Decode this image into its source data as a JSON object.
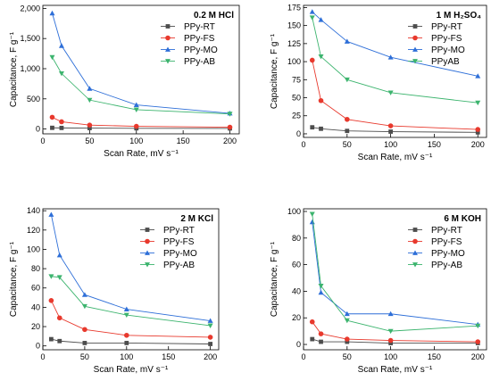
{
  "chart_data": [
    {
      "type": "line",
      "title": "0.2 M HCl",
      "xlabel": "Scan Rate, mV s⁻¹",
      "ylabel": "Capacitance, F g⁻¹",
      "x": [
        10,
        20,
        50,
        100,
        200
      ],
      "xlim": [
        0,
        210
      ],
      "xticks": [
        0,
        50,
        100,
        150,
        200
      ],
      "xtick_labels": [
        "0",
        "50",
        "100",
        "150",
        "200"
      ],
      "ylim": [
        -80,
        2050
      ],
      "yticks": [
        0,
        500,
        1000,
        1500,
        2000
      ],
      "ytick_labels": [
        "0",
        "500",
        "1,000",
        "1,500",
        "2,000"
      ],
      "legend_position": "top-right",
      "grid": false,
      "series": [
        {
          "name": "PPy-RT",
          "color": "#4d4d4d",
          "marker": "square",
          "values": [
            20,
            18,
            15,
            12,
            10
          ]
        },
        {
          "name": "PPy-FS",
          "color": "#e8392d",
          "marker": "circle",
          "values": [
            195,
            120,
            65,
            45,
            30
          ]
        },
        {
          "name": "PPy-MO",
          "color": "#2e6fd8",
          "marker": "triangle-up",
          "values": [
            1920,
            1380,
            670,
            400,
            260
          ]
        },
        {
          "name": "PPy-AB",
          "color": "#3cb46e",
          "marker": "triangle-down",
          "values": [
            1190,
            920,
            480,
            320,
            250
          ]
        }
      ]
    },
    {
      "type": "line",
      "title": "1 M H₂SO₄",
      "xlabel": "Scan Rate, mV s⁻¹",
      "ylabel": "Capacitance, F g⁻¹",
      "x": [
        10,
        20,
        50,
        100,
        200
      ],
      "xlim": [
        0,
        210
      ],
      "xticks": [
        0,
        50,
        100,
        150,
        200
      ],
      "xtick_labels": [
        "0",
        "50",
        "100",
        "150",
        "200"
      ],
      "ylim": [
        -5,
        178
      ],
      "yticks": [
        0,
        25,
        50,
        75,
        100,
        125,
        150,
        175
      ],
      "ytick_labels": [
        "0",
        "25",
        "50",
        "75",
        "100",
        "125",
        "150",
        "175"
      ],
      "legend_position": "top-right",
      "grid": false,
      "series": [
        {
          "name": "PPy-RT",
          "color": "#4d4d4d",
          "marker": "square",
          "values": [
            9,
            7,
            4,
            3,
            2
          ]
        },
        {
          "name": "PPy-FS",
          "color": "#e8392d",
          "marker": "circle",
          "values": [
            102,
            46,
            20,
            11,
            6
          ]
        },
        {
          "name": "PPy-MO",
          "color": "#2e6fd8",
          "marker": "triangle-up",
          "values": [
            169,
            158,
            128,
            106,
            80
          ]
        },
        {
          "name": "PPyAB",
          "color": "#3cb46e",
          "marker": "triangle-down",
          "values": [
            161,
            107,
            75,
            57,
            43
          ]
        }
      ]
    },
    {
      "type": "line",
      "title": "2 M KCl",
      "xlabel": "Scan Rate, mV s⁻¹",
      "ylabel": "Capacitance, F g⁻¹",
      "x": [
        10,
        20,
        50,
        100,
        200
      ],
      "xlim": [
        0,
        210
      ],
      "xticks": [
        0,
        50,
        100,
        150,
        200
      ],
      "xtick_labels": [
        "0",
        "50",
        "100",
        "150",
        "200"
      ],
      "ylim": [
        -4,
        142
      ],
      "yticks": [
        0,
        20,
        40,
        60,
        80,
        100,
        120,
        140
      ],
      "ytick_labels": [
        "0",
        "20",
        "40",
        "60",
        "80",
        "100",
        "120",
        "140"
      ],
      "legend_position": "top-right",
      "grid": false,
      "series": [
        {
          "name": "PPy-RT",
          "color": "#4d4d4d",
          "marker": "square",
          "values": [
            7,
            5,
            3,
            3,
            2
          ]
        },
        {
          "name": "PPy-FS",
          "color": "#e8392d",
          "marker": "circle",
          "values": [
            47,
            29,
            17,
            11,
            9
          ]
        },
        {
          "name": "PPy-MO",
          "color": "#2e6fd8",
          "marker": "triangle-up",
          "values": [
            136,
            94,
            53,
            38,
            26
          ]
        },
        {
          "name": "PPy-AB",
          "color": "#3cb46e",
          "marker": "triangle-down",
          "values": [
            72,
            71,
            41,
            32,
            21
          ]
        }
      ]
    },
    {
      "type": "line",
      "title": "6 M KOH",
      "xlabel": "Scan Rate, mV s⁻¹",
      "ylabel": "Capacitance, F g⁻¹",
      "x": [
        10,
        20,
        50,
        100,
        200
      ],
      "xlim": [
        0,
        210
      ],
      "xticks": [
        0,
        50,
        100,
        150,
        200
      ],
      "xtick_labels": [
        "0",
        "50",
        "100",
        "150",
        "200"
      ],
      "ylim": [
        -4,
        102
      ],
      "yticks": [
        0,
        20,
        40,
        60,
        80,
        100
      ],
      "ytick_labels": [
        "0",
        "20",
        "40",
        "60",
        "80",
        "100"
      ],
      "legend_position": "top-right",
      "grid": false,
      "series": [
        {
          "name": "PPy-RT",
          "color": "#4d4d4d",
          "marker": "square",
          "values": [
            4,
            2,
            2,
            1,
            1
          ]
        },
        {
          "name": "PPy-FS",
          "color": "#e8392d",
          "marker": "circle",
          "values": [
            17,
            8,
            4,
            3,
            2
          ]
        },
        {
          "name": "PPy-MO",
          "color": "#2e6fd8",
          "marker": "triangle-up",
          "values": [
            92,
            39,
            23,
            23,
            15
          ]
        },
        {
          "name": "PPy-AB",
          "color": "#3cb46e",
          "marker": "triangle-down",
          "values": [
            98,
            44,
            18,
            10,
            14
          ]
        }
      ]
    }
  ]
}
